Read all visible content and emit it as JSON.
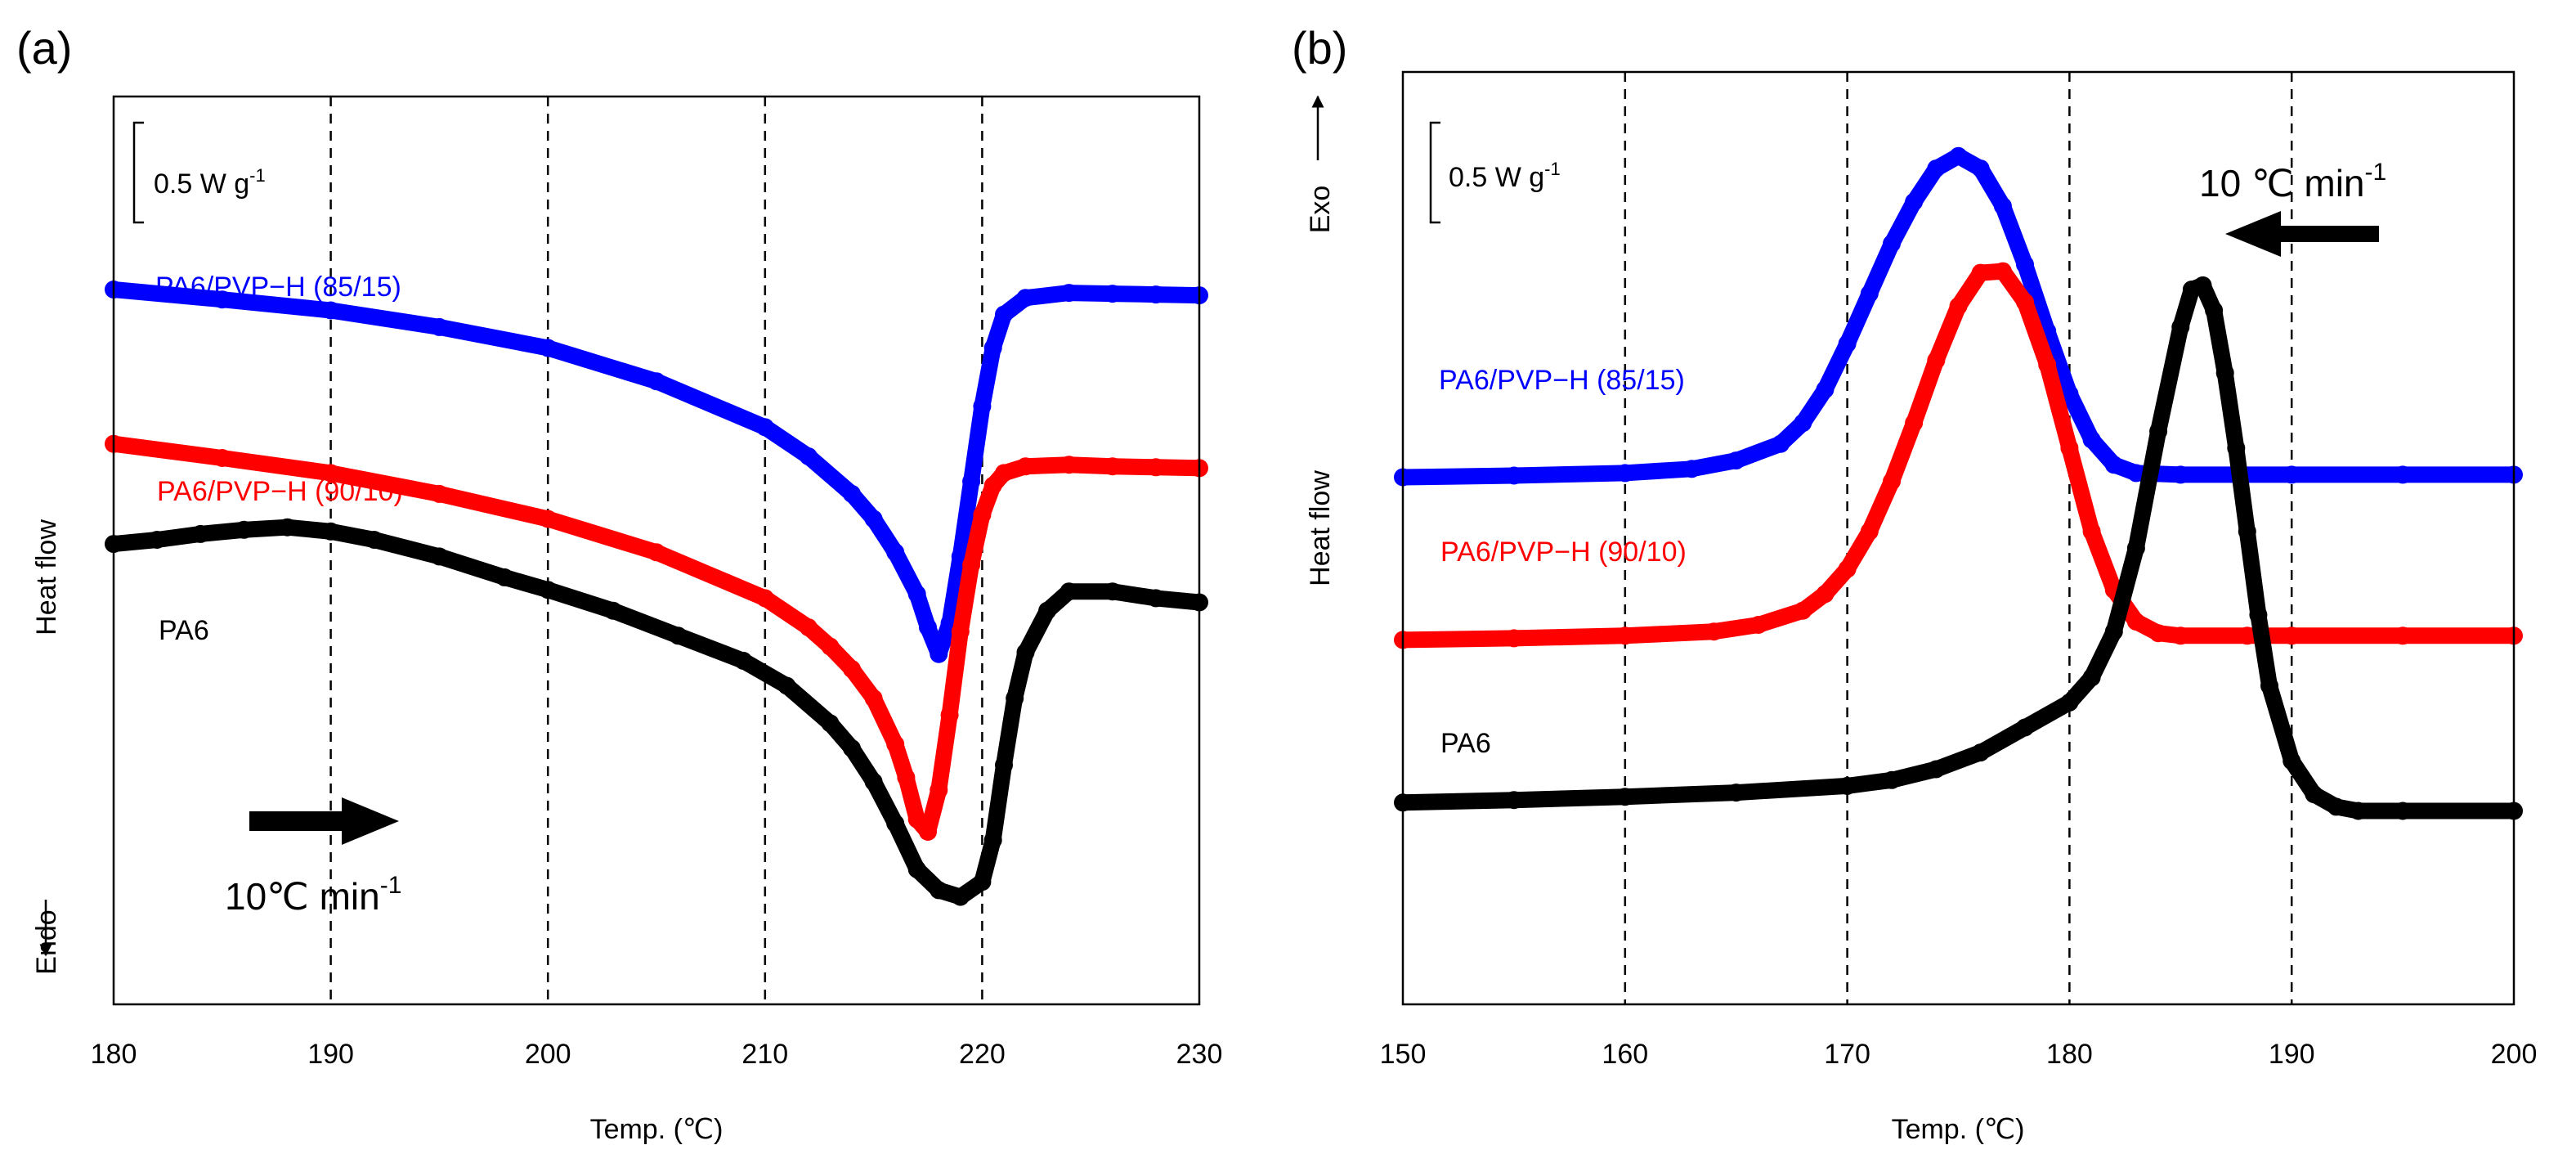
{
  "figure": {
    "panels": [
      "(a)",
      "(b)"
    ]
  },
  "chart_data": [
    {
      "type": "line",
      "panel_label": "(a)",
      "xlabel": "Temp. (℃)",
      "ylabel": "Heat flow",
      "xlim": [
        180,
        230
      ],
      "ylim": [
        0,
        10
      ],
      "x_ticks": [
        180,
        190,
        200,
        210,
        220,
        230
      ],
      "vgrid_at": [
        190,
        200,
        210,
        220
      ],
      "scale_bar": {
        "text": "0.5 W g",
        "sup": "-1"
      },
      "y_direction": {
        "text": "Endo",
        "arrow": "down"
      },
      "rate_annotation": {
        "text": "10℃ min",
        "sup": "-1",
        "arrow": "right"
      },
      "series": [
        {
          "name": "PA6/PVP−H (85/15)",
          "color": "#0000ff",
          "x": [
            180,
            185,
            190,
            195,
            200,
            205,
            210,
            212,
            214,
            215,
            216,
            217,
            217.5,
            218,
            218.5,
            219,
            219.5,
            220,
            220.5,
            221,
            222,
            224,
            226,
            228,
            230
          ],
          "y": [
            8.0,
            7.88,
            7.75,
            7.55,
            7.3,
            6.9,
            6.35,
            6.0,
            5.55,
            5.25,
            4.85,
            4.35,
            3.95,
            3.63,
            4.0,
            4.8,
            5.7,
            6.6,
            7.3,
            7.7,
            7.9,
            7.96,
            7.95,
            7.94,
            7.93
          ]
        },
        {
          "name": "PA6/PVP−H (90/10)",
          "color": "#ff0000",
          "x": [
            180,
            185,
            190,
            195,
            200,
            205,
            210,
            212,
            213,
            214,
            215,
            216,
            216.5,
            217,
            217.5,
            218,
            218.5,
            219,
            219.5,
            220,
            220.5,
            221,
            222,
            224,
            226,
            228,
            230
          ],
          "y": [
            6.15,
            5.98,
            5.8,
            5.55,
            5.25,
            4.85,
            4.3,
            3.95,
            3.72,
            3.45,
            3.1,
            2.55,
            2.15,
            1.65,
            1.5,
            2.0,
            2.9,
            3.9,
            4.7,
            5.3,
            5.65,
            5.8,
            5.88,
            5.9,
            5.88,
            5.87,
            5.86
          ]
        },
        {
          "name": "PA6",
          "color": "#000000",
          "x": [
            180,
            182,
            184,
            186,
            188,
            190,
            192,
            195,
            198,
            200,
            203,
            206,
            209,
            211,
            213,
            214,
            215,
            216,
            217,
            218,
            219,
            220,
            220.5,
            221,
            221.5,
            222,
            223,
            224,
            226,
            228,
            230
          ],
          "y": [
            4.95,
            5.0,
            5.07,
            5.12,
            5.15,
            5.1,
            5.0,
            4.8,
            4.55,
            4.4,
            4.15,
            3.85,
            3.55,
            3.25,
            2.8,
            2.5,
            2.1,
            1.6,
            1.05,
            0.8,
            0.72,
            0.9,
            1.4,
            2.3,
            3.1,
            3.65,
            4.15,
            4.38,
            4.38,
            4.3,
            4.25
          ]
        }
      ]
    },
    {
      "type": "line",
      "panel_label": "(b)",
      "xlabel": "Temp. (℃)",
      "ylabel": "Heat flow",
      "xlim": [
        150,
        200
      ],
      "ylim": [
        0,
        10
      ],
      "x_ticks": [
        150,
        160,
        170,
        180,
        190,
        200
      ],
      "vgrid_at": [
        160,
        170,
        180,
        190
      ],
      "scale_bar": {
        "text": "0.5 W g",
        "sup": "-1"
      },
      "y_direction": {
        "text": "Exo",
        "arrow": "up"
      },
      "rate_annotation": {
        "text": "10 ℃ min",
        "sup": "-1",
        "arrow": "left"
      },
      "series": [
        {
          "name": "PA6/PVP−H (85/15)",
          "color": "#0000ff",
          "x": [
            150,
            155,
            160,
            163,
            165,
            167,
            168,
            169,
            170,
            171,
            172,
            173,
            174,
            175,
            176,
            177,
            178,
            179,
            180,
            181,
            182,
            183,
            185,
            190,
            195,
            200
          ],
          "y": [
            5.75,
            5.77,
            5.8,
            5.85,
            5.95,
            6.15,
            6.4,
            6.8,
            7.35,
            7.95,
            8.55,
            9.05,
            9.45,
            9.6,
            9.45,
            9.0,
            8.3,
            7.5,
            6.75,
            6.2,
            5.9,
            5.8,
            5.78,
            5.78,
            5.78,
            5.78
          ]
        },
        {
          "name": "PA6/PVP−H (90/10)",
          "color": "#ff0000",
          "x": [
            150,
            155,
            160,
            164,
            166,
            168,
            169,
            170,
            171,
            172,
            173,
            174,
            175,
            176,
            177,
            178,
            179,
            180,
            181,
            182,
            183,
            184,
            185,
            188,
            190,
            195,
            200
          ],
          "y": [
            3.8,
            3.82,
            3.85,
            3.9,
            3.98,
            4.15,
            4.35,
            4.65,
            5.1,
            5.7,
            6.4,
            7.15,
            7.8,
            8.2,
            8.22,
            7.85,
            7.1,
            6.1,
            5.1,
            4.4,
            4.02,
            3.88,
            3.85,
            3.85,
            3.85,
            3.85,
            3.85
          ]
        },
        {
          "name": "PA6",
          "color": "#000000",
          "x": [
            150,
            155,
            160,
            165,
            170,
            172,
            174,
            176,
            178,
            180,
            181,
            182,
            183,
            184,
            185,
            185.5,
            186,
            186.5,
            187,
            187.5,
            188,
            188.5,
            189,
            190,
            191,
            192,
            193,
            195,
            200
          ],
          "y": [
            1.85,
            1.88,
            1.92,
            1.97,
            2.05,
            2.12,
            2.25,
            2.45,
            2.75,
            3.05,
            3.35,
            3.9,
            4.9,
            6.3,
            7.55,
            8.0,
            8.05,
            7.75,
            7.0,
            6.1,
            5.1,
            4.1,
            3.25,
            2.35,
            1.95,
            1.8,
            1.75,
            1.75,
            1.75
          ]
        }
      ]
    }
  ]
}
